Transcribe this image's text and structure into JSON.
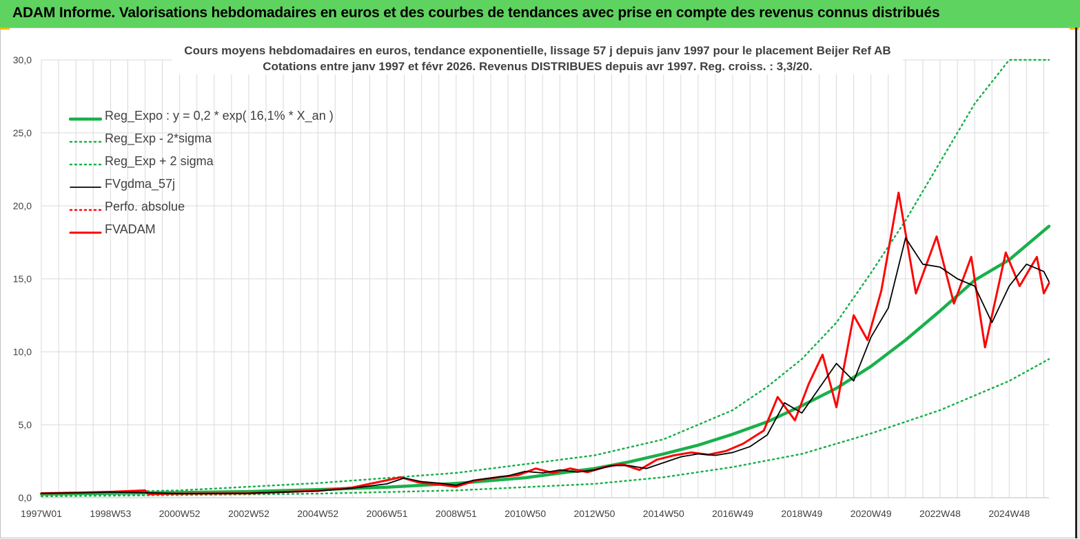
{
  "banner": {
    "title": "ADAM Informe. Valorisations hebdomadaires en euros et des courbes de tendances avec prise en compte des revenus connus distribués"
  },
  "colors": {
    "banner": "#5fd35f",
    "reg_expo": "#19b04b",
    "fvgdma": "#000000",
    "fvadam": "#ff0000",
    "grid": "#d9d9d9"
  },
  "chart_data": {
    "type": "line",
    "title": "Cours moyens hebdomadaires en euros, tendance exponentielle, lissage 57 j depuis janv 1997 pour le placement Beijer Ref AB",
    "subtitle": "Cotations entre janv 1997 et févr 2026. Revenus DISTRIBUES depuis avr 1997. Reg. croiss. : 3,3/20.",
    "xlabel": "",
    "ylabel": "",
    "ylim": [
      0,
      30
    ],
    "xlim": [
      1997.0,
      2026.15
    ],
    "grid": true,
    "legend_position": "top-left",
    "y_ticks": [
      "0,0",
      "5,0",
      "10,0",
      "15,0",
      "20,0",
      "25,0",
      "30,0"
    ],
    "x_ticks": [
      {
        "label": "1997W01",
        "x": 1997.0
      },
      {
        "label": "1998W53",
        "x": 1999.0
      },
      {
        "label": "2000W52",
        "x": 2001.0
      },
      {
        "label": "2002W52",
        "x": 2003.0
      },
      {
        "label": "2004W52",
        "x": 2005.0
      },
      {
        "label": "2006W51",
        "x": 2007.0
      },
      {
        "label": "2008W51",
        "x": 2009.0
      },
      {
        "label": "2010W50",
        "x": 2011.0
      },
      {
        "label": "2012W50",
        "x": 2013.0
      },
      {
        "label": "2014W50",
        "x": 2015.0
      },
      {
        "label": "2016W49",
        "x": 2017.0
      },
      {
        "label": "2018W49",
        "x": 2019.0
      },
      {
        "label": "2020W49",
        "x": 2021.0
      },
      {
        "label": "2022W48",
        "x": 2023.0
      },
      {
        "label": "2024W48",
        "x": 2025.0
      }
    ],
    "series": [
      {
        "name": "Reg_Expo : y = 0,2 * exp( 16,1% *  X_an )",
        "style": "solid-thick",
        "color": "#19b04b",
        "x": [
          1997.0,
          2000.0,
          2003.0,
          2005.0,
          2007.0,
          2009.0,
          2011.0,
          2013.0,
          2014.0,
          2015.0,
          2016.0,
          2017.0,
          2018.0,
          2019.0,
          2020.0,
          2021.0,
          2022.0,
          2023.0,
          2024.0,
          2025.0,
          2026.15
        ],
        "y": [
          0.25,
          0.33,
          0.42,
          0.55,
          0.72,
          0.98,
          1.37,
          2.0,
          2.45,
          3.0,
          3.6,
          4.35,
          5.2,
          6.3,
          7.5,
          9.0,
          10.8,
          12.8,
          14.9,
          16.3,
          18.6
        ]
      },
      {
        "name": "Reg_Exp - 2*sigma",
        "style": "dotted",
        "color": "#19b04b",
        "x": [
          1997.0,
          2001.0,
          2005.0,
          2009.0,
          2013.0,
          2015.0,
          2017.0,
          2019.0,
          2021.0,
          2023.0,
          2025.0,
          2026.15
        ],
        "y": [
          0.1,
          0.18,
          0.28,
          0.5,
          0.95,
          1.4,
          2.1,
          3.0,
          4.4,
          6.0,
          8.0,
          9.5
        ]
      },
      {
        "name": "Reg_Exp + 2 sigma",
        "style": "dotted",
        "color": "#19b04b",
        "x": [
          1997.0,
          2001.0,
          2005.0,
          2009.0,
          2013.0,
          2015.0,
          2017.0,
          2018.0,
          2019.0,
          2020.0,
          2021.0,
          2022.0,
          2023.0,
          2024.0,
          2025.0,
          2026.15
        ],
        "y": [
          0.3,
          0.5,
          1.0,
          1.7,
          2.9,
          4.0,
          6.0,
          7.6,
          9.5,
          12.0,
          15.4,
          19.0,
          23.0,
          27.0,
          30.0,
          30.0
        ]
      },
      {
        "name": "FVgdma_57j",
        "style": "solid",
        "color": "#000000",
        "x": [
          1997.0,
          1998.0,
          1999.0,
          2000.0,
          2001.0,
          2003.0,
          2005.0,
          2006.0,
          2007.0,
          2007.5,
          2008.0,
          2008.5,
          2009.0,
          2009.5,
          2010.0,
          2010.5,
          2011.0,
          2011.5,
          2012.0,
          2012.5,
          2013.0,
          2013.5,
          2014.0,
          2014.5,
          2015.0,
          2015.5,
          2016.0,
          2016.5,
          2017.0,
          2017.5,
          2018.0,
          2018.5,
          2019.0,
          2019.5,
          2020.0,
          2020.5,
          2021.0,
          2021.5,
          2022.0,
          2022.5,
          2023.0,
          2023.5,
          2024.0,
          2024.5,
          2025.0,
          2025.5,
          2026.0,
          2026.15
        ],
        "y": [
          0.3,
          0.33,
          0.38,
          0.35,
          0.28,
          0.3,
          0.45,
          0.65,
          0.95,
          1.35,
          1.1,
          1.0,
          0.85,
          1.2,
          1.35,
          1.5,
          1.8,
          1.7,
          1.9,
          1.75,
          1.9,
          2.2,
          2.2,
          2.0,
          2.4,
          2.8,
          3.0,
          2.9,
          3.1,
          3.5,
          4.3,
          6.5,
          5.8,
          7.5,
          9.2,
          8.0,
          11.0,
          13.0,
          17.8,
          16.0,
          15.8,
          15.0,
          14.5,
          12.0,
          14.5,
          16.0,
          15.5,
          14.8
        ]
      },
      {
        "name": "Perfo. absolue",
        "style": "dotted",
        "color": "#ff0000",
        "x": [],
        "y": []
      },
      {
        "name": "FVADAM",
        "style": "solid-thick",
        "color": "#ff0000",
        "x": [
          1997.0,
          1998.0,
          1999.0,
          2000.0,
          2000.1,
          2001.0,
          2003.0,
          2005.0,
          2006.0,
          2007.0,
          2007.4,
          2007.9,
          2008.5,
          2009.0,
          2009.6,
          2010.2,
          2010.8,
          2011.3,
          2011.8,
          2012.3,
          2012.8,
          2013.3,
          2013.8,
          2014.3,
          2014.8,
          2015.3,
          2015.8,
          2016.3,
          2016.8,
          2017.3,
          2017.9,
          2018.3,
          2018.8,
          2019.2,
          2019.6,
          2020.0,
          2020.5,
          2020.9,
          2021.3,
          2021.8,
          2022.3,
          2022.9,
          2023.4,
          2023.9,
          2024.3,
          2024.9,
          2025.3,
          2025.8,
          2026.0,
          2026.15
        ],
        "y": [
          0.3,
          0.35,
          0.4,
          0.5,
          0.25,
          0.28,
          0.3,
          0.48,
          0.7,
          1.2,
          1.4,
          1.05,
          0.9,
          0.75,
          1.2,
          1.4,
          1.55,
          2.0,
          1.7,
          2.0,
          1.75,
          2.1,
          2.3,
          1.9,
          2.6,
          2.9,
          3.1,
          2.95,
          3.2,
          3.7,
          4.6,
          6.9,
          5.3,
          7.8,
          9.8,
          6.2,
          12.5,
          10.8,
          14.2,
          20.9,
          14.0,
          17.9,
          13.3,
          16.5,
          10.3,
          16.8,
          14.5,
          16.5,
          14.0,
          14.7
        ]
      }
    ]
  }
}
